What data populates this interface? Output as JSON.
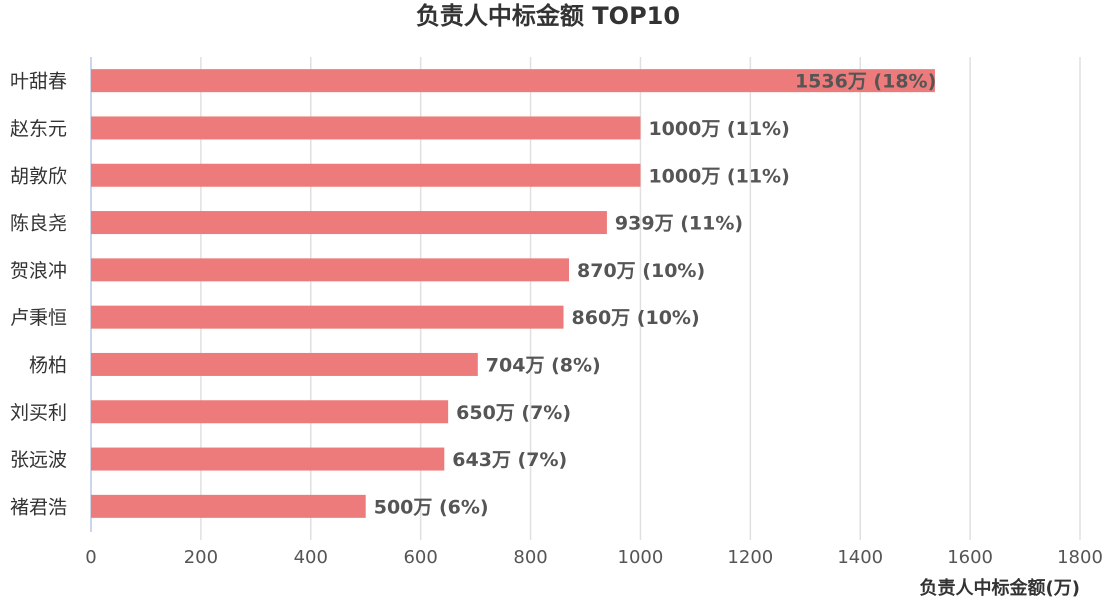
{
  "chart_data": {
    "type": "bar",
    "orientation": "horizontal",
    "title": "负责人中标金额 TOP10",
    "xlabel": "负责人中标金额(万)",
    "ylabel": "",
    "xlim": [
      0,
      1800
    ],
    "x_ticks": [
      "0",
      "200",
      "400",
      "600",
      "800",
      "1000",
      "1200",
      "1400",
      "1600",
      "1800"
    ],
    "grid": true,
    "bar_color": "#ee7b7b",
    "categories": [
      "叶甜春",
      "赵东元",
      "胡敦欣",
      "陈良尧",
      "贺浪冲",
      "卢秉恒",
      "杨柏",
      "刘买利",
      "张远波",
      "褚君浩"
    ],
    "values": [
      1536,
      1000,
      1000,
      939,
      870,
      860,
      704,
      650,
      643,
      500
    ],
    "data_labels": [
      "1536万 (18%)",
      "1000万 (11%)",
      "1000万 (11%)",
      "939万 (11%)",
      "870万 (10%)",
      "860万 (10%)",
      "704万 (8%)",
      "650万 (7%)",
      "643万 (7%)",
      "500万 (6%)"
    ]
  }
}
